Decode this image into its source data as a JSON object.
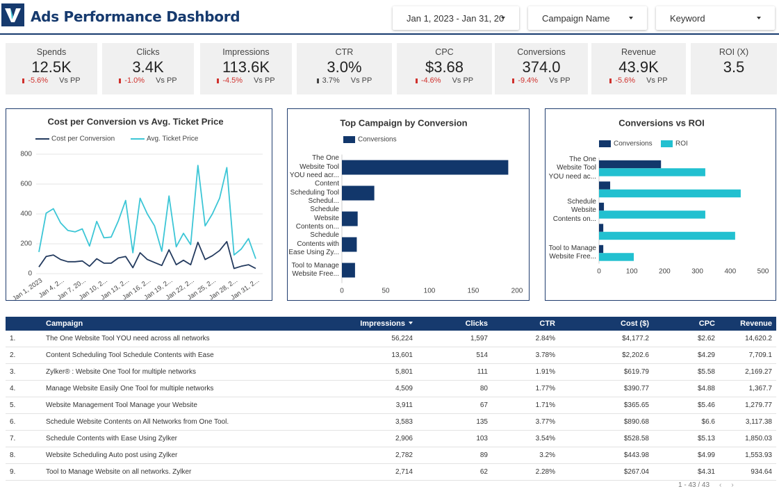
{
  "header": {
    "title": "Ads Performance Dashbord",
    "filters": [
      "Jan 1, 2023 - Jan 31, 20",
      "Campaign Name",
      "Keyword"
    ]
  },
  "kpis": [
    {
      "label": "Spends",
      "value": "12.5K",
      "change": "-5.6%",
      "compare": "Vs PP"
    },
    {
      "label": "Clicks",
      "value": "3.4K",
      "change": "-1.0%",
      "compare": "Vs PP"
    },
    {
      "label": "Impressions",
      "value": "113.6K",
      "change": "-4.5%",
      "compare": "Vs PP"
    },
    {
      "label": "CTR",
      "value": "3.0%",
      "change": "3.7%",
      "compare": "Vs PP"
    },
    {
      "label": "CPC",
      "value": "$3.68",
      "change": "-4.6%",
      "compare": "Vs PP"
    },
    {
      "label": "Conversions",
      "value": "374.0",
      "change": "-9.4%",
      "compare": "Vs PP"
    },
    {
      "label": "Revenue",
      "value": "43.9K",
      "change": "-5.6%",
      "compare": "Vs PP"
    },
    {
      "label": "ROI (X)",
      "value": "3.5"
    }
  ],
  "chart_data": [
    {
      "type": "line",
      "title": "Cost per Conversion vs Avg. Ticket Price",
      "categories": [
        "Jan 1, 2023",
        null,
        null,
        "Jan 4, 2...",
        null,
        null,
        "Jan 7, 20...",
        null,
        null,
        "Jan 10, 2...",
        null,
        null,
        "Jan 13, 2...",
        null,
        null,
        "Jan 16, 2...",
        null,
        null,
        "Jan 19, 2...",
        null,
        null,
        "Jan 22, 2...",
        null,
        null,
        "Jan 25, 2...",
        null,
        null,
        "Jan 28, 2...",
        null,
        null,
        "Jan 31, 2..."
      ],
      "series": [
        {
          "name": "Cost per Conversion",
          "color": "#233a5e",
          "values": [
            45,
            115,
            125,
            95,
            80,
            80,
            85,
            50,
            100,
            70,
            70,
            105,
            115,
            40,
            140,
            95,
            75,
            55,
            160,
            60,
            90,
            60,
            210,
            95,
            120,
            155,
            215,
            35,
            50,
            60,
            35
          ]
        },
        {
          "name": "Avg. Ticket Price",
          "color": "#3cc6d6",
          "values": [
            145,
            405,
            435,
            340,
            290,
            280,
            300,
            185,
            350,
            240,
            245,
            355,
            490,
            140,
            505,
            400,
            320,
            150,
            520,
            180,
            270,
            195,
            725,
            320,
            400,
            505,
            710,
            125,
            165,
            235,
            100
          ]
        }
      ],
      "ylim": [
        0,
        800
      ],
      "yticks": [
        0,
        200,
        400,
        600,
        800
      ],
      "grid": true,
      "legend": "top"
    },
    {
      "type": "hbar",
      "title": "Top Campaign by Conversion",
      "categories": [
        "The One Website Tool YOU need acr...",
        "Content Scheduling Tool Schedul...",
        "Schedule Website Contents on...",
        "Schedule Contents with Ease Using Zy...",
        "Tool to Manage Website Free..."
      ],
      "series": [
        {
          "name": "Conversions",
          "color": "#12376b",
          "values": [
            190,
            37,
            18,
            17,
            15
          ]
        }
      ],
      "xlim": [
        0,
        200
      ],
      "xticks": [
        0,
        50,
        100,
        150,
        200
      ],
      "grid": false,
      "legend": "top"
    },
    {
      "type": "hbar",
      "title": "Conversions vs ROI",
      "categories": [
        "The One Website Tool YOU need ac...",
        null,
        "Schedule Website Contents on...",
        null,
        "Tool to Manage Website Free..."
      ],
      "series": [
        {
          "name": "Conversions",
          "color": "#12376b",
          "values": [
            189,
            34,
            15,
            13,
            13
          ]
        },
        {
          "name": "ROI",
          "color": "#22c0d0",
          "values": [
            324,
            432,
            324,
            415,
            106
          ]
        }
      ],
      "xlim": [
        0,
        500
      ],
      "xticks": [
        0,
        100,
        200,
        300,
        400,
        500
      ],
      "grid": false,
      "legend": "top"
    }
  ],
  "table": {
    "columns": [
      "Campaign",
      "Impressions",
      "Clicks",
      "CTR",
      "Cost ($)",
      "CPC",
      "Revenue"
    ],
    "rows": [
      [
        "1.",
        "The One Website Tool YOU need across all networks",
        "56,224",
        "1,597",
        "2.84%",
        "$4,177.2",
        "$2.62",
        "14,620.2"
      ],
      [
        "2.",
        "Content Scheduling Tool Schedule Contents with Ease",
        "13,601",
        "514",
        "3.78%",
        "$2,202.6",
        "$4.29",
        "7,709.1"
      ],
      [
        "3.",
        "Zylker® : Website One Tool for multiple networks",
        "5,801",
        "111",
        "1.91%",
        "$619.79",
        "$5.58",
        "2,169.27"
      ],
      [
        "4.",
        "Manage Website Easily One Tool for multiple networks",
        "4,509",
        "80",
        "1.77%",
        "$390.77",
        "$4.88",
        "1,367.7"
      ],
      [
        "5.",
        "Website Management Tool Manage your Website",
        "3,911",
        "67",
        "1.71%",
        "$365.65",
        "$5.46",
        "1,279.77"
      ],
      [
        "6.",
        "Schedule Website Contents on All Networks from One Tool.",
        "3,583",
        "135",
        "3.77%",
        "$890.68",
        "$6.6",
        "3,117.38"
      ],
      [
        "7.",
        "Schedule Contents with Ease Using Zylker",
        "2,906",
        "103",
        "3.54%",
        "$528.58",
        "$5.13",
        "1,850.03"
      ],
      [
        "8.",
        "Website Scheduling Auto post using Zylker",
        "2,782",
        "89",
        "3.2%",
        "$443.98",
        "$4.99",
        "1,553.93"
      ],
      [
        "9.",
        "Tool to Manage Website on all networks. Zylker",
        "2,714",
        "62",
        "2.28%",
        "$267.04",
        "$4.31",
        "934.64"
      ]
    ],
    "pagination": "1 - 43 / 43"
  }
}
